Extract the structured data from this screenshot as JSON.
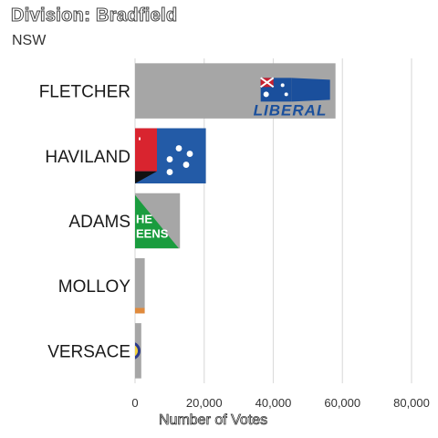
{
  "chart_data": {
    "type": "bar",
    "orientation": "horizontal",
    "title": "Division: Bradfield",
    "subtitle": "NSW",
    "xlabel": "Number of Votes",
    "categories": [
      "FLETCHER",
      "HAVILAND",
      "ADAMS",
      "MOLLOY",
      "VERSACE"
    ],
    "values": [
      58000,
      20500,
      13000,
      2800,
      1800
    ],
    "xlim": [
      0,
      80000
    ],
    "xticks": [
      0,
      20000,
      40000,
      60000,
      80000
    ],
    "xtick_labels": [
      "0",
      "20,000",
      "40,000",
      "60,000",
      "80,000"
    ],
    "grid": true,
    "bar_color": "#a6a6a6",
    "logos": [
      "liberal-logo",
      "labor-logo",
      "greens-logo",
      "party-logo",
      "party-logo"
    ],
    "logo_text": {
      "liberal": "LIBERAL",
      "greens_line1": "HE",
      "greens_line2": "EENS"
    }
  }
}
